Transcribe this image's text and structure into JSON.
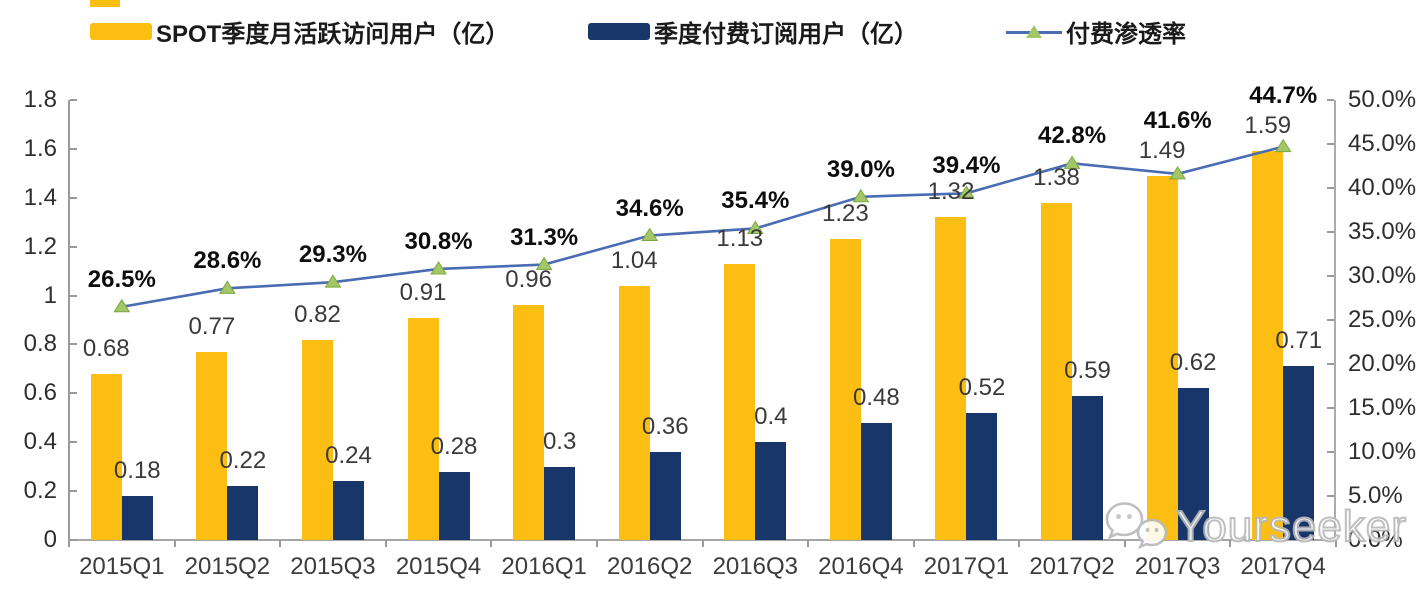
{
  "legend": [
    {
      "label": "SPOT季度月活跃访问用户（亿）"
    },
    {
      "label": "季度付费订阅用户（亿）"
    },
    {
      "label": "付费渗透率"
    }
  ],
  "chart_data": {
    "type": "combo-bar-line",
    "title": "",
    "categories": [
      "2015Q1",
      "2015Q2",
      "2015Q3",
      "2015Q4",
      "2016Q1",
      "2016Q2",
      "2016Q3",
      "2016Q4",
      "2017Q1",
      "2017Q2",
      "2017Q3",
      "2017Q4"
    ],
    "series": [
      {
        "name": "SPOT季度月活跃访问用户（亿）",
        "type": "bar",
        "axis": "left",
        "color": "#FCBE12",
        "values": [
          0.68,
          0.77,
          0.82,
          0.91,
          0.96,
          1.04,
          1.13,
          1.23,
          1.32,
          1.38,
          1.49,
          1.59
        ],
        "value_labels": [
          "0.68",
          "0.77",
          "0.82",
          "0.91",
          "0.96",
          "1.04",
          "1.13",
          "1.23",
          "1.32",
          "1.38",
          "1.49",
          "1.59"
        ]
      },
      {
        "name": "季度付费订阅用户（亿）",
        "type": "bar",
        "axis": "left",
        "color": "#19366B",
        "values": [
          0.18,
          0.22,
          0.24,
          0.28,
          0.3,
          0.36,
          0.4,
          0.48,
          0.52,
          0.59,
          0.62,
          0.71
        ],
        "value_labels": [
          "0.18",
          "0.22",
          "0.24",
          "0.28",
          "0.3",
          "0.36",
          "0.4",
          "0.48",
          "0.52",
          "0.59",
          "0.62",
          "0.71"
        ]
      },
      {
        "name": "付费渗透率",
        "type": "line",
        "axis": "right",
        "color": "#4A6CB3",
        "marker": "triangle",
        "marker_color": "#A3C766",
        "marker_edge_color": "#7DA83F",
        "values": [
          26.5,
          28.6,
          29.3,
          30.8,
          31.3,
          34.6,
          35.4,
          39.0,
          39.4,
          42.8,
          41.6,
          44.7
        ],
        "value_labels": [
          "26.5%",
          "28.6%",
          "29.3%",
          "30.8%",
          "31.3%",
          "34.6%",
          "35.4%",
          "39.0%",
          "39.4%",
          "42.8%",
          "41.6%",
          "44.7%"
        ]
      }
    ],
    "left_axis": {
      "min": 0,
      "max": 1.8,
      "tick_labels": [
        "0",
        "0.2",
        "0.4",
        "0.6",
        "0.8",
        "1",
        "1.2",
        "1.4",
        "1.6",
        "1.8"
      ]
    },
    "right_axis": {
      "min": 0,
      "max": 50,
      "tick_labels": [
        "0.0%",
        "5.0%",
        "10.0%",
        "15.0%",
        "20.0%",
        "25.0%",
        "30.0%",
        "35.0%",
        "40.0%",
        "45.0%",
        "50.0%"
      ]
    },
    "grid": false,
    "legend_position": "top"
  },
  "watermark": {
    "text": "Yourseeker",
    "icon": "wechat-icon"
  }
}
